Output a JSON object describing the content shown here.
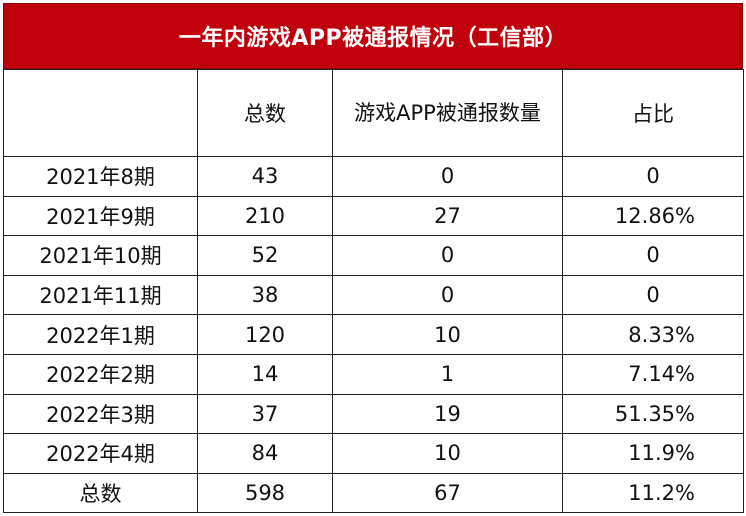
{
  "title": "一年内游戏APP被通报情况（工信部）",
  "columns": [
    "",
    "总数",
    "游戏APP被通报数量",
    "占比"
  ],
  "rows": [
    {
      "period": "2021年8期",
      "total": "43",
      "reported": "0",
      "ratio": "0"
    },
    {
      "period": "2021年9期",
      "total": "210",
      "reported": "27",
      "ratio": "12.86%"
    },
    {
      "period": "2021年10期",
      "total": "52",
      "reported": "0",
      "ratio": "0"
    },
    {
      "period": "2021年11期",
      "total": "38",
      "reported": "0",
      "ratio": "0"
    },
    {
      "period": "2022年1期",
      "total": "120",
      "reported": "10",
      "ratio": "8.33%"
    },
    {
      "period": "2022年2期",
      "total": "14",
      "reported": "1",
      "ratio": "7.14%"
    },
    {
      "period": "2022年3期",
      "total": "37",
      "reported": "19",
      "ratio": "51.35%"
    },
    {
      "period": "2022年4期",
      "total": "84",
      "reported": "10",
      "ratio": "11.9%"
    },
    {
      "period": "总数",
      "total": "598",
      "reported": "67",
      "ratio": "11.2%"
    }
  ],
  "colors": {
    "title_bg": "#c0000b",
    "title_text": "#ffffff",
    "border": "#222222"
  }
}
